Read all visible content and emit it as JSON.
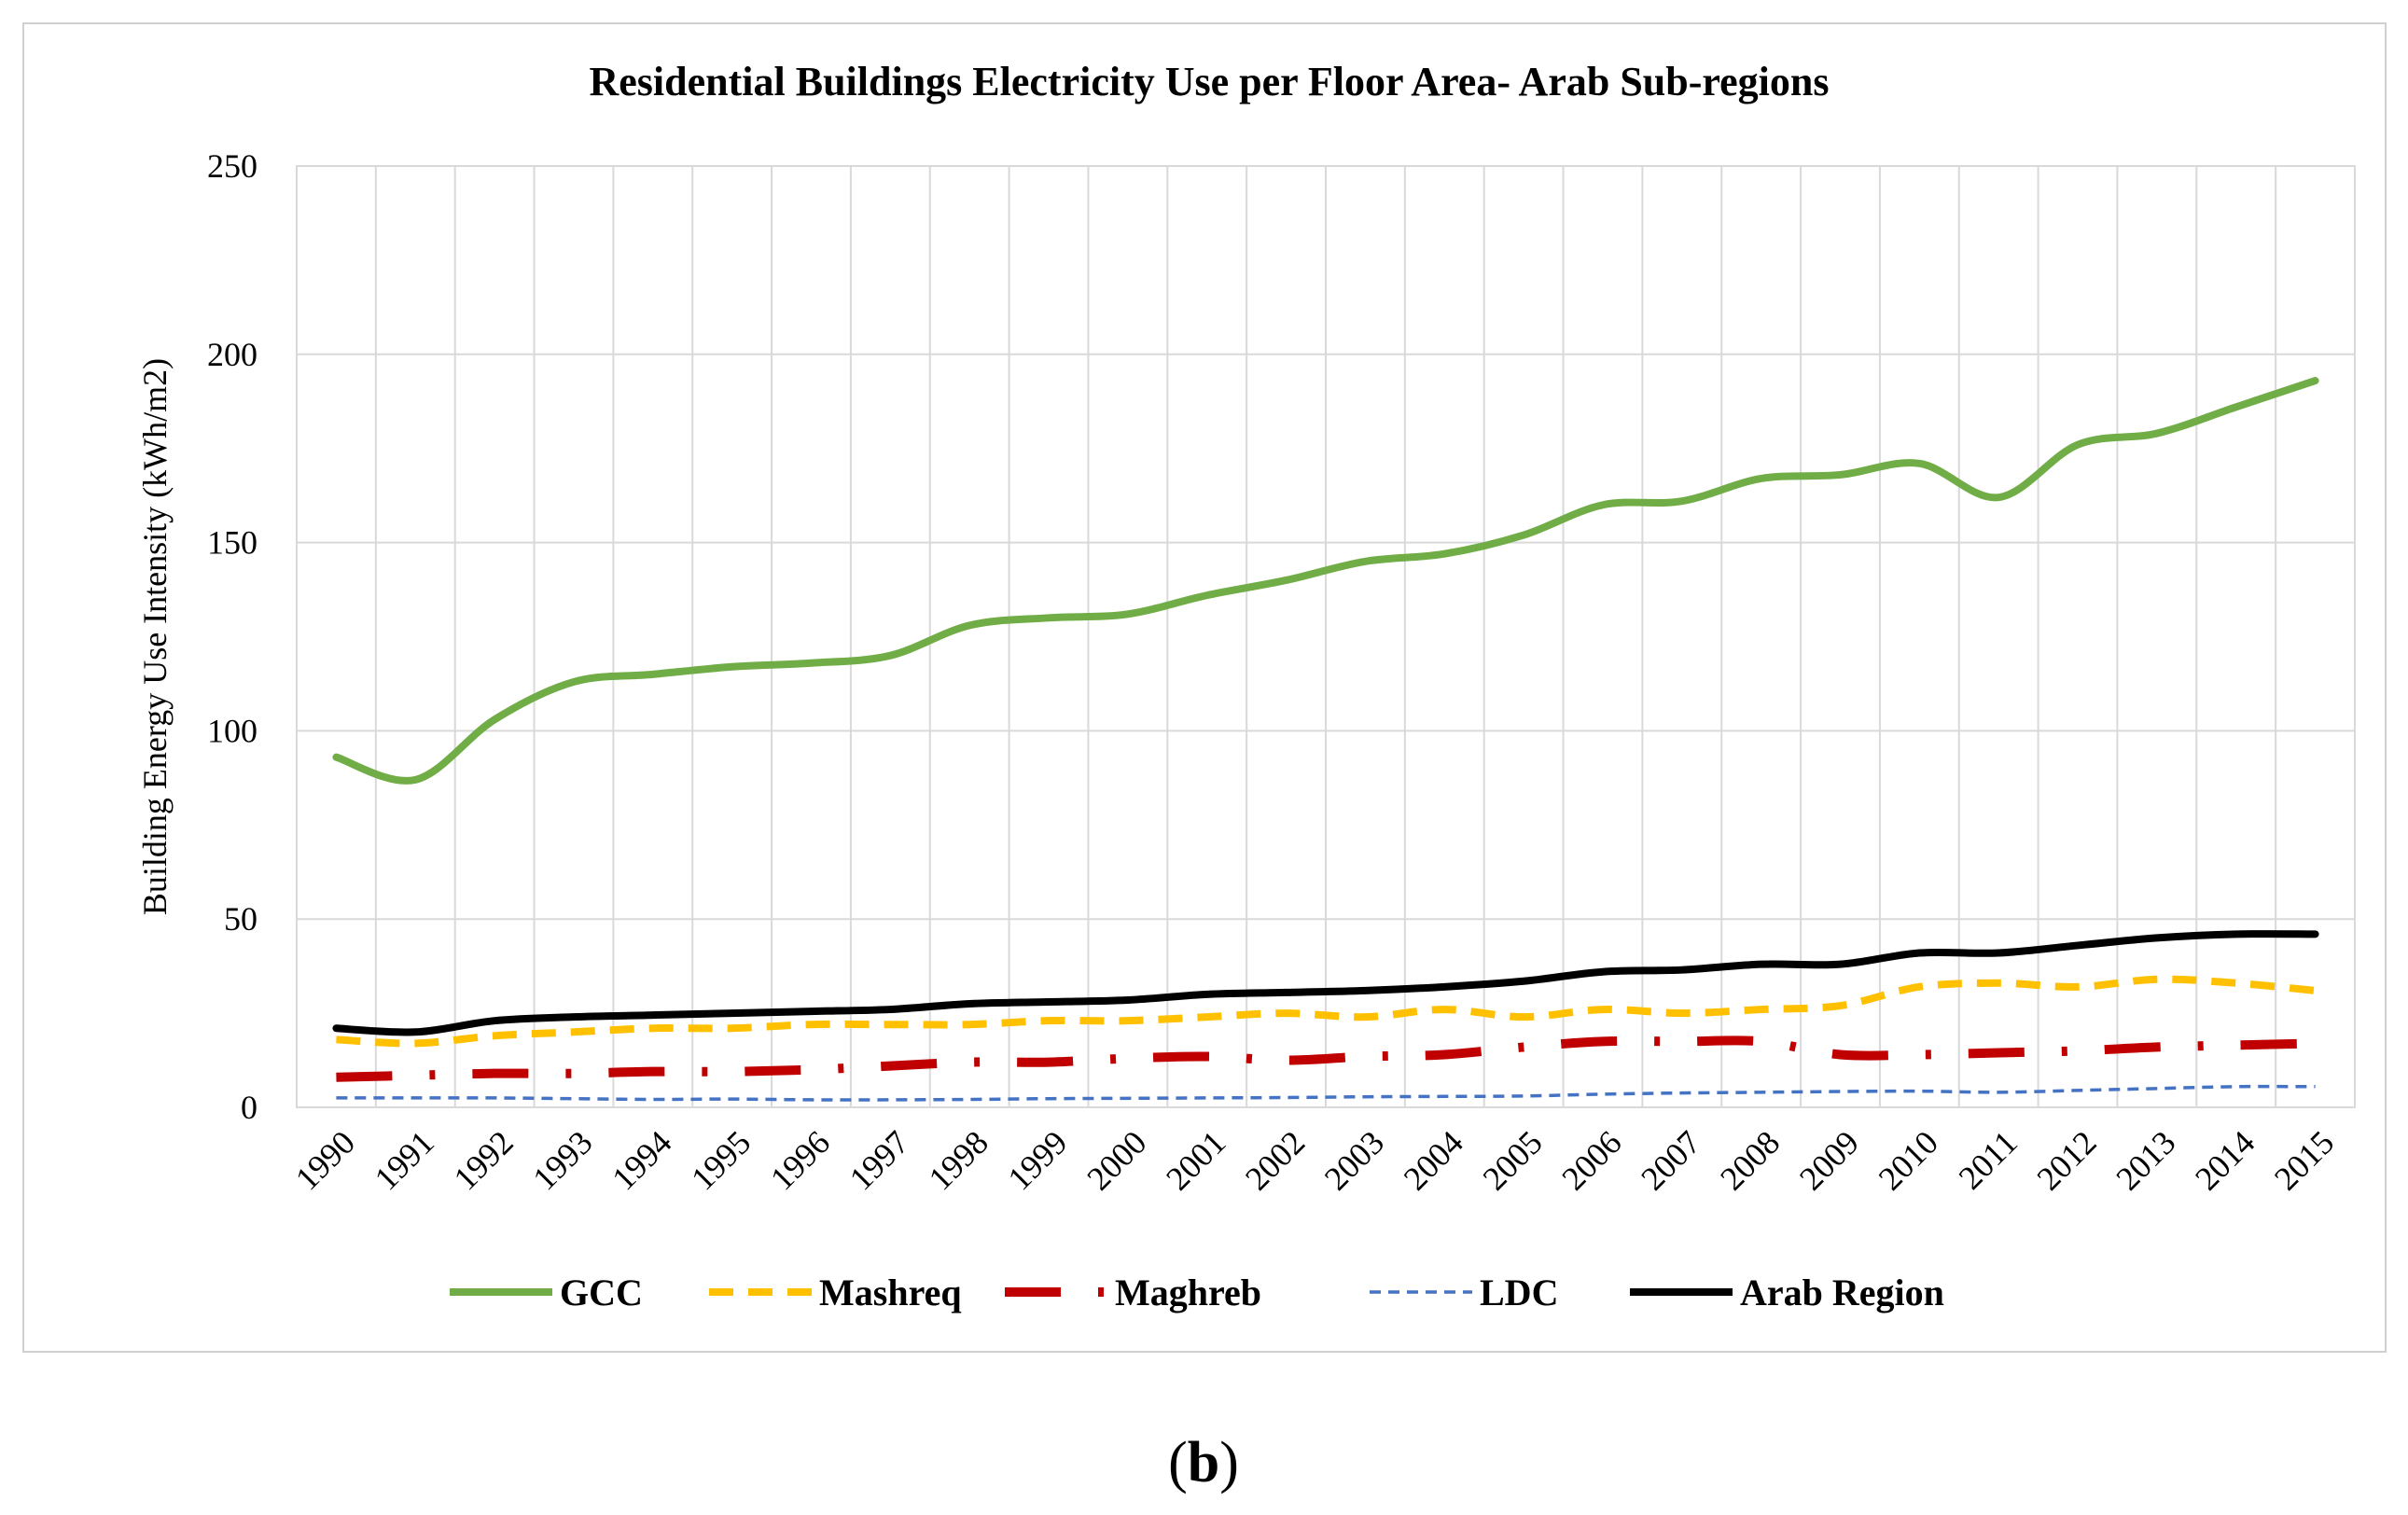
{
  "caption": {
    "open": "(",
    "letter": "b",
    "close": ")"
  },
  "chart_data": {
    "type": "line",
    "title": "Residential Buildings Electricity Use per Floor Area- Arab Sub-regions",
    "xlabel": "",
    "ylabel": "Building Energy Use Intensity  (kWh/m2)",
    "ylim": [
      0,
      250
    ],
    "yticks": [
      0,
      50,
      100,
      150,
      200,
      250
    ],
    "grid": true,
    "legend_position": "bottom",
    "categories": [
      "1990",
      "1991",
      "1992",
      "1993",
      "1994",
      "1995",
      "1996",
      "1997",
      "1998",
      "1999",
      "2000",
      "2001",
      "2002",
      "2003",
      "2004",
      "2005",
      "2006",
      "2007",
      "2008",
      "2009",
      "2010",
      "2011",
      "2012",
      "2013",
      "2014",
      "2015"
    ],
    "series": [
      {
        "name": "GCC",
        "color": "#70ad47",
        "dash": "solid",
        "values": [
          93,
          87,
          103,
          113,
          115,
          117,
          118,
          120,
          128,
          130,
          131,
          136,
          140,
          145,
          147,
          152,
          160,
          161,
          167,
          168,
          171,
          162,
          176,
          179,
          186,
          193
        ]
      },
      {
        "name": "Mashreq",
        "color": "#ffc000",
        "dash": "dash",
        "values": [
          18,
          17,
          19,
          20,
          21,
          21,
          22,
          22,
          22,
          23,
          23,
          24,
          25,
          24,
          26,
          24,
          26,
          25,
          26,
          27,
          32,
          33,
          32,
          34,
          33,
          31
        ]
      },
      {
        "name": "Maghreb",
        "color": "#c00000",
        "dash": "dashdot",
        "values": [
          8,
          8.5,
          9,
          9,
          9.5,
          9.5,
          10,
          11,
          12,
          12,
          13,
          13.5,
          12.5,
          13.5,
          14,
          16,
          17.5,
          17.5,
          17.5,
          14,
          14,
          14.5,
          15,
          16,
          16.5,
          17
        ]
      },
      {
        "name": "LDC",
        "color": "#4472c4",
        "dash": "dot",
        "values": [
          2.5,
          2.5,
          2.5,
          2.3,
          2.1,
          2.2,
          2.0,
          2.0,
          2.1,
          2.3,
          2.4,
          2.5,
          2.6,
          2.8,
          2.9,
          3.0,
          3.5,
          3.8,
          4.0,
          4.2,
          4.3,
          4.0,
          4.5,
          5.0,
          5.5,
          5.5
        ]
      },
      {
        "name": "Arab Region",
        "color": "#000000",
        "dash": "solid",
        "values": [
          21,
          20,
          23,
          24,
          24.5,
          25,
          25.5,
          26,
          27.5,
          28,
          28.5,
          30,
          30.5,
          31,
          32,
          33.5,
          36,
          36.5,
          38,
          38,
          41,
          41,
          43,
          45,
          46,
          46
        ]
      }
    ]
  }
}
